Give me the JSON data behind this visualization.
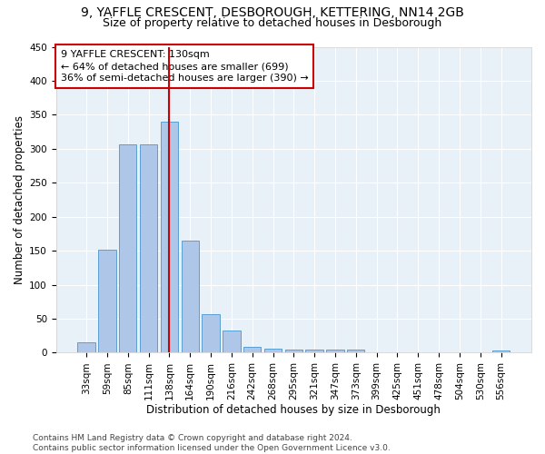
{
  "title": "9, YAFFLE CRESCENT, DESBOROUGH, KETTERING, NN14 2GB",
  "subtitle": "Size of property relative to detached houses in Desborough",
  "xlabel": "Distribution of detached houses by size in Desborough",
  "ylabel": "Number of detached properties",
  "bar_labels": [
    "33sqm",
    "59sqm",
    "85sqm",
    "111sqm",
    "138sqm",
    "164sqm",
    "190sqm",
    "216sqm",
    "242sqm",
    "268sqm",
    "295sqm",
    "321sqm",
    "347sqm",
    "373sqm",
    "399sqm",
    "425sqm",
    "451sqm",
    "478sqm",
    "504sqm",
    "530sqm",
    "556sqm"
  ],
  "bar_values": [
    15,
    152,
    307,
    307,
    340,
    165,
    57,
    33,
    9,
    6,
    4,
    4,
    4,
    4,
    0,
    0,
    0,
    0,
    0,
    0,
    3
  ],
  "bar_color": "#aec6e8",
  "bar_edgecolor": "#5a9fd4",
  "bar_linewidth": 0.7,
  "vline_bar_idx": 4,
  "vline_color": "#cc0000",
  "annotation_line1": "9 YAFFLE CRESCENT: 130sqm",
  "annotation_line2": "← 64% of detached houses are smaller (699)",
  "annotation_line3": "36% of semi-detached houses are larger (390) →",
  "ylim": [
    0,
    450
  ],
  "yticks": [
    0,
    50,
    100,
    150,
    200,
    250,
    300,
    350,
    400,
    450
  ],
  "background_color": "#e8f0f8",
  "footer_text": "Contains HM Land Registry data © Crown copyright and database right 2024.\nContains public sector information licensed under the Open Government Licence v3.0.",
  "title_fontsize": 10,
  "subtitle_fontsize": 9,
  "xlabel_fontsize": 8.5,
  "ylabel_fontsize": 8.5,
  "tick_fontsize": 7.5,
  "annotation_fontsize": 8,
  "footer_fontsize": 6.5
}
